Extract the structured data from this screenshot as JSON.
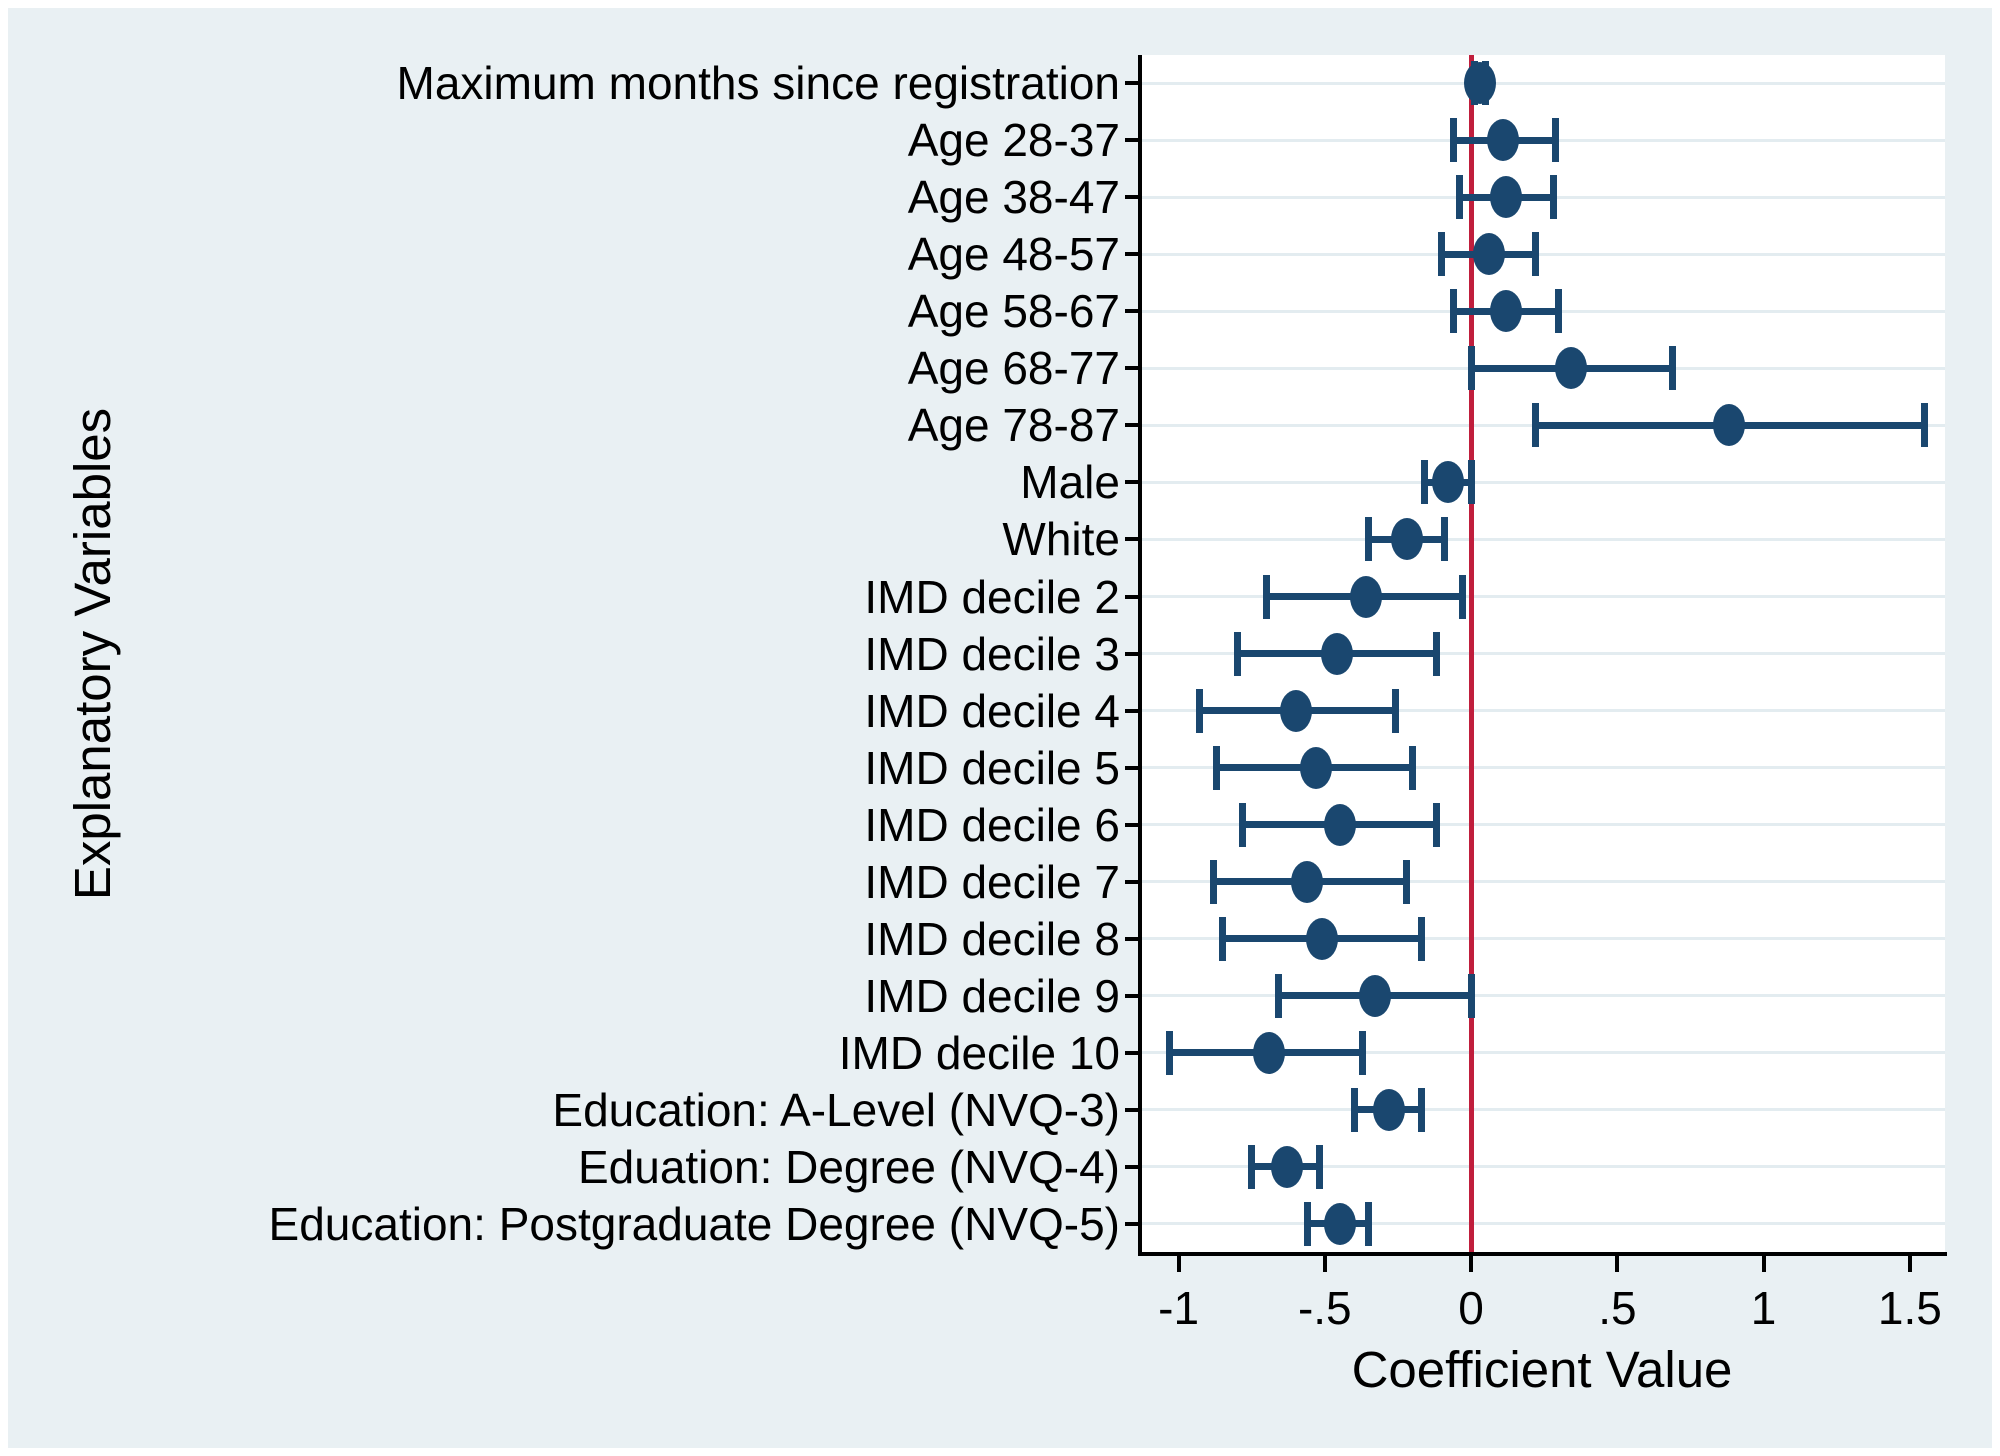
{
  "figure": {
    "x_axis_title": "Coefficient Value",
    "y_axis_title": "Explanatory Variables"
  },
  "chart_data": {
    "type": "scatter",
    "subtype": "horizontal-coefficient-plot-with-95ci",
    "title": "",
    "xlabel": "Coefficient Value",
    "ylabel": "Explanatory Variables",
    "xlim": [
      -1.125,
      1.62
    ],
    "grid": "horizontal line per category",
    "legend": "none",
    "zero_line_x": 0,
    "x_ticks": [
      {
        "v": -1,
        "label": "-1"
      },
      {
        "v": -0.5,
        "label": "-.5"
      },
      {
        "v": 0,
        "label": "0"
      },
      {
        "v": 0.5,
        "label": ".5"
      },
      {
        "v": 1,
        "label": "1"
      },
      {
        "v": 1.5,
        "label": "1.5"
      }
    ],
    "rows": [
      {
        "label": "Maximum months since registration",
        "coef": 0.03,
        "ci_low": 0.01,
        "ci_high": 0.05
      },
      {
        "label": "Age 28-37",
        "coef": 0.11,
        "ci_low": -0.06,
        "ci_high": 0.29
      },
      {
        "label": "Age 38-47",
        "coef": 0.12,
        "ci_low": -0.04,
        "ci_high": 0.28
      },
      {
        "label": "Age 48-57",
        "coef": 0.06,
        "ci_low": -0.1,
        "ci_high": 0.22
      },
      {
        "label": "Age 58-67",
        "coef": 0.12,
        "ci_low": -0.06,
        "ci_high": 0.3
      },
      {
        "label": "Age 68-77",
        "coef": 0.34,
        "ci_low": 0.0,
        "ci_high": 0.69
      },
      {
        "label": "Age 78-87",
        "coef": 0.88,
        "ci_low": 0.22,
        "ci_high": 1.55
      },
      {
        "label": "Male",
        "coef": -0.08,
        "ci_low": -0.16,
        "ci_high": 0.0
      },
      {
        "label": "White",
        "coef": -0.22,
        "ci_low": -0.35,
        "ci_high": -0.09
      },
      {
        "label": "IMD decile 2",
        "coef": -0.36,
        "ci_low": -0.7,
        "ci_high": -0.03
      },
      {
        "label": "IMD decile 3",
        "coef": -0.46,
        "ci_low": -0.8,
        "ci_high": -0.12
      },
      {
        "label": "IMD decile 4",
        "coef": -0.6,
        "ci_low": -0.93,
        "ci_high": -0.26
      },
      {
        "label": "IMD decile 5",
        "coef": -0.53,
        "ci_low": -0.87,
        "ci_high": -0.2
      },
      {
        "label": "IMD decile 6",
        "coef": -0.45,
        "ci_low": -0.78,
        "ci_high": -0.12
      },
      {
        "label": "IMD decile 7",
        "coef": -0.56,
        "ci_low": -0.88,
        "ci_high": -0.22
      },
      {
        "label": "IMD decile 8",
        "coef": -0.51,
        "ci_low": -0.85,
        "ci_high": -0.17
      },
      {
        "label": "IMD decile 9",
        "coef": -0.33,
        "ci_low": -0.66,
        "ci_high": 0.0
      },
      {
        "label": "IMD decile 10",
        "coef": -0.69,
        "ci_low": -1.03,
        "ci_high": -0.37
      },
      {
        "label": "Education: A-Level (NVQ-3)",
        "coef": -0.28,
        "ci_low": -0.4,
        "ci_high": -0.17
      },
      {
        "label": "Eduation: Degree (NVQ-4)",
        "coef": -0.63,
        "ci_low": -0.75,
        "ci_high": -0.52
      },
      {
        "label": "Education: Postgraduate Degree (NVQ-5)",
        "coef": -0.45,
        "ci_low": -0.56,
        "ci_high": -0.35
      }
    ],
    "colors": {
      "marker": "#1a476f",
      "ci": "#1a476f",
      "zero_line": "#c01e3c",
      "canvas_bg": "#e9f0f3",
      "plot_bg": "#ffffff",
      "gridline": "#e3ecf0",
      "axis": "#000000"
    }
  }
}
